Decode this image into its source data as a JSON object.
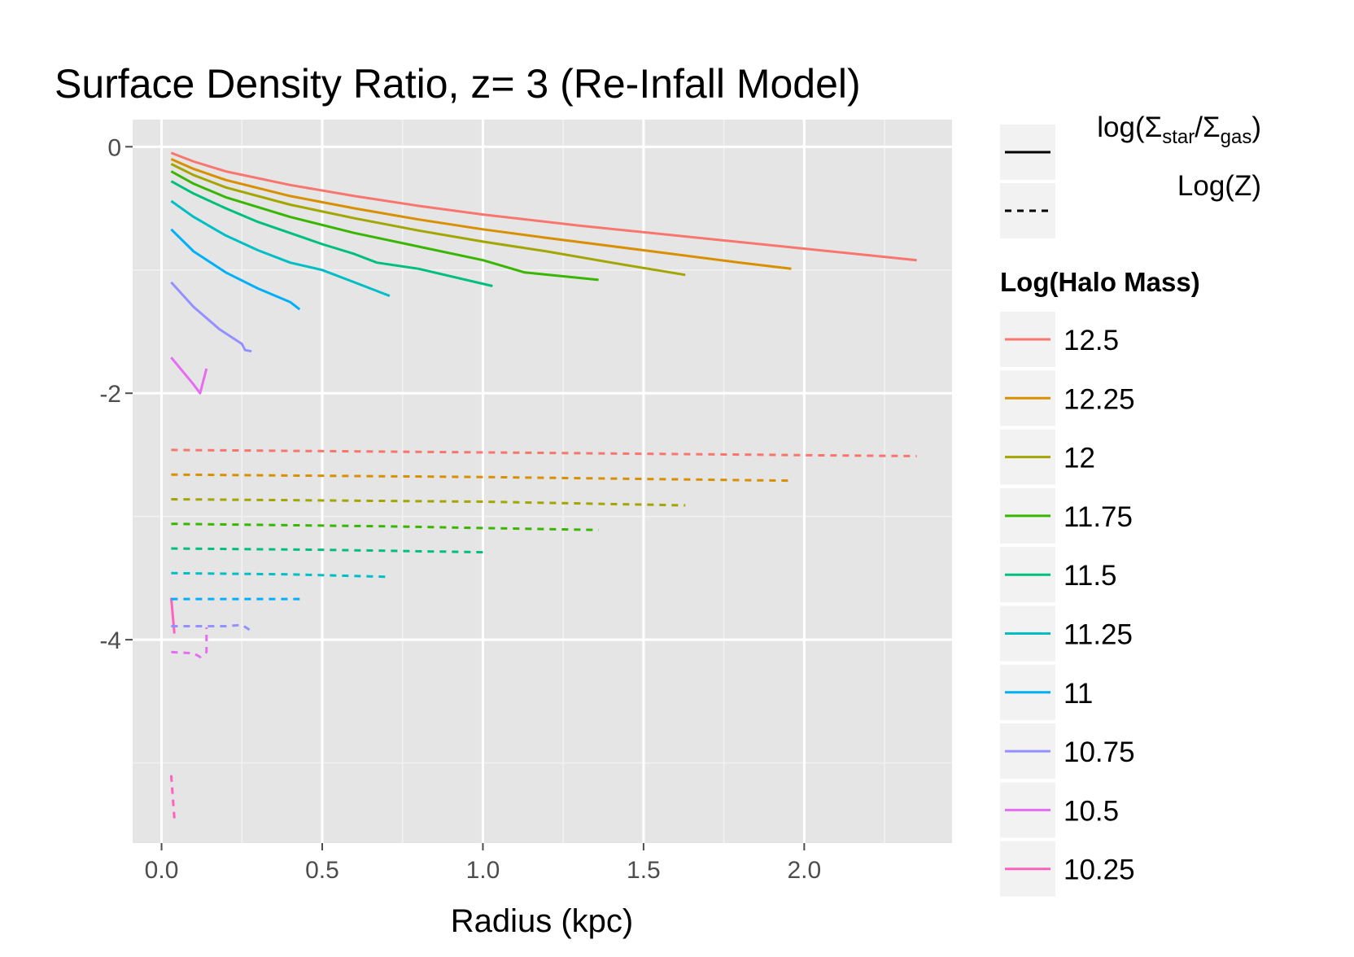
{
  "chart_data": {
    "type": "line",
    "title": "Surface Density Ratio, z= 3 (Re-Infall Model)",
    "xlabel": "Radius (kpc)",
    "ylabel": "",
    "xlim": [
      -0.09,
      2.46
    ],
    "ylim": [
      -5.65,
      0.22
    ],
    "xticks": [
      0.0,
      0.5,
      1.0,
      1.5,
      2.0
    ],
    "xtick_labels": [
      "0.0",
      "0.5",
      "1.0",
      "1.5",
      "2.0"
    ],
    "yticks": [
      0,
      -2,
      -4
    ],
    "ytick_labels": [
      "0",
      "-2",
      "-4"
    ],
    "grid": true,
    "legend_placement": "right",
    "linetype_legend": {
      "entries": [
        {
          "style": "solid",
          "label_main": "log(Σ",
          "sub1": "star",
          "mid": "/Σ",
          "sub2": "gas",
          "end": ")"
        },
        {
          "style": "dashed",
          "label": "Log(Z)"
        }
      ]
    },
    "color_legend": {
      "title": "Log(Halo Mass)",
      "entries": [
        {
          "label": "12.5",
          "color": "#F8766D"
        },
        {
          "label": "12.25",
          "color": "#D89000"
        },
        {
          "label": "12",
          "color": "#A3A500"
        },
        {
          "label": "11.75",
          "color": "#39B600"
        },
        {
          "label": "11.5",
          "color": "#00BF7D"
        },
        {
          "label": "11.25",
          "color": "#00BFC4"
        },
        {
          "label": "11",
          "color": "#00B0F6"
        },
        {
          "label": "10.75",
          "color": "#9590FF"
        },
        {
          "label": "10.5",
          "color": "#E76BF3"
        },
        {
          "label": "10.25",
          "color": "#FF62BC"
        }
      ]
    },
    "series": [
      {
        "mass": "12.5",
        "color": "#F8766D",
        "style": "solid",
        "x": [
          0.03,
          0.1,
          0.2,
          0.4,
          0.6,
          0.8,
          1.0,
          1.3,
          1.6,
          1.9,
          2.2,
          2.35
        ],
        "y": [
          -0.05,
          -0.12,
          -0.2,
          -0.31,
          -0.4,
          -0.48,
          -0.55,
          -0.64,
          -0.72,
          -0.8,
          -0.88,
          -0.92
        ]
      },
      {
        "mass": "12.25",
        "color": "#D89000",
        "style": "solid",
        "x": [
          0.03,
          0.1,
          0.2,
          0.4,
          0.6,
          0.8,
          1.0,
          1.2,
          1.5,
          1.8,
          1.96
        ],
        "y": [
          -0.1,
          -0.18,
          -0.27,
          -0.4,
          -0.5,
          -0.59,
          -0.67,
          -0.74,
          -0.84,
          -0.94,
          -0.99
        ]
      },
      {
        "mass": "12",
        "color": "#A3A500",
        "style": "solid",
        "x": [
          0.03,
          0.1,
          0.2,
          0.4,
          0.6,
          0.8,
          1.0,
          1.2,
          1.4,
          1.63
        ],
        "y": [
          -0.14,
          -0.23,
          -0.33,
          -0.47,
          -0.58,
          -0.68,
          -0.77,
          -0.85,
          -0.94,
          -1.04
        ]
      },
      {
        "mass": "11.75",
        "color": "#39B600",
        "style": "solid",
        "x": [
          0.03,
          0.1,
          0.2,
          0.4,
          0.6,
          0.8,
          1.0,
          1.13,
          1.36
        ],
        "y": [
          -0.2,
          -0.3,
          -0.41,
          -0.57,
          -0.7,
          -0.81,
          -0.92,
          -1.02,
          -1.08
        ]
      },
      {
        "mass": "11.5",
        "color": "#00BF7D",
        "style": "solid",
        "x": [
          0.03,
          0.1,
          0.2,
          0.3,
          0.4,
          0.5,
          0.6,
          0.67,
          0.8,
          1.03
        ],
        "y": [
          -0.28,
          -0.38,
          -0.5,
          -0.61,
          -0.7,
          -0.79,
          -0.87,
          -0.94,
          -0.99,
          -1.13
        ]
      },
      {
        "mass": "11.25",
        "color": "#00BFC4",
        "style": "solid",
        "x": [
          0.03,
          0.1,
          0.2,
          0.3,
          0.4,
          0.5,
          0.6,
          0.71
        ],
        "y": [
          -0.44,
          -0.57,
          -0.72,
          -0.84,
          -0.94,
          -1.0,
          -1.1,
          -1.21
        ]
      },
      {
        "mass": "11",
        "color": "#00B0F6",
        "style": "solid",
        "x": [
          0.03,
          0.1,
          0.2,
          0.3,
          0.4,
          0.43
        ],
        "y": [
          -0.67,
          -0.85,
          -1.02,
          -1.15,
          -1.26,
          -1.32
        ]
      },
      {
        "mass": "10.75",
        "color": "#9590FF",
        "style": "solid",
        "x": [
          0.03,
          0.1,
          0.18,
          0.25,
          0.26,
          0.28
        ],
        "y": [
          -1.1,
          -1.3,
          -1.48,
          -1.6,
          -1.65,
          -1.66
        ]
      },
      {
        "mass": "10.5",
        "color": "#E76BF3",
        "style": "solid",
        "x": [
          0.03,
          0.1,
          0.12,
          0.14
        ],
        "y": [
          -1.71,
          -1.93,
          -2.0,
          -1.8
        ]
      },
      {
        "mass": "10.25",
        "color": "#FF62BC",
        "style": "solid",
        "x": [
          0.03,
          0.04
        ],
        "y": [
          -3.66,
          -3.95
        ]
      },
      {
        "mass": "12.5",
        "color": "#F8766D",
        "style": "dashed",
        "x": [
          0.03,
          1.0,
          2.35
        ],
        "y": [
          -2.46,
          -2.48,
          -2.51
        ]
      },
      {
        "mass": "12.25",
        "color": "#D89000",
        "style": "dashed",
        "x": [
          0.03,
          1.0,
          1.96
        ],
        "y": [
          -2.66,
          -2.68,
          -2.71
        ]
      },
      {
        "mass": "12",
        "color": "#A3A500",
        "style": "dashed",
        "x": [
          0.03,
          1.0,
          1.63
        ],
        "y": [
          -2.86,
          -2.88,
          -2.91
        ]
      },
      {
        "mass": "11.75",
        "color": "#39B600",
        "style": "dashed",
        "x": [
          0.03,
          0.7,
          1.36
        ],
        "y": [
          -3.06,
          -3.08,
          -3.11
        ]
      },
      {
        "mass": "11.5",
        "color": "#00BF7D",
        "style": "dashed",
        "x": [
          0.03,
          0.5,
          1.0
        ],
        "y": [
          -3.26,
          -3.27,
          -3.29
        ]
      },
      {
        "mass": "11.25",
        "color": "#00BFC4",
        "style": "dashed",
        "x": [
          0.03,
          0.4,
          0.71
        ],
        "y": [
          -3.46,
          -3.47,
          -3.49
        ]
      },
      {
        "mass": "11",
        "color": "#00B0F6",
        "style": "dashed",
        "x": [
          0.03,
          0.2,
          0.43
        ],
        "y": [
          -3.67,
          -3.67,
          -3.67
        ]
      },
      {
        "mass": "10.75",
        "color": "#9590FF",
        "style": "dashed",
        "x": [
          0.03,
          0.2,
          0.25,
          0.28
        ],
        "y": [
          -3.89,
          -3.89,
          -3.88,
          -3.93
        ]
      },
      {
        "mass": "10.5",
        "color": "#E76BF3",
        "style": "dashed",
        "x": [
          0.03,
          0.1,
          0.12,
          0.14,
          0.14
        ],
        "y": [
          -4.1,
          -4.11,
          -4.14,
          -4.1,
          -3.9
        ]
      },
      {
        "mass": "10.25",
        "color": "#FF62BC",
        "style": "dashed",
        "x": [
          0.03,
          0.04
        ],
        "y": [
          -5.1,
          -5.45
        ]
      }
    ]
  }
}
